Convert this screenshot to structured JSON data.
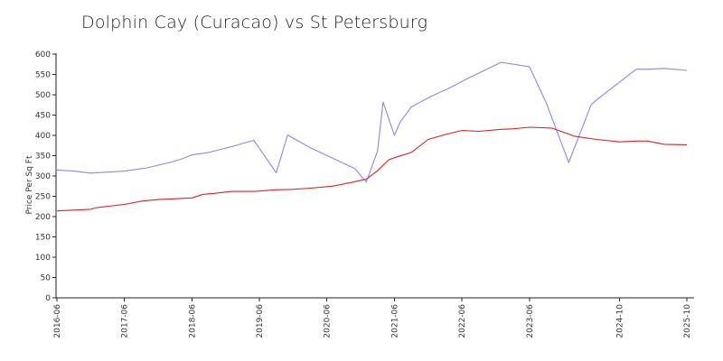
{
  "chart_data": {
    "type": "line",
    "title": "Dolphin Cay (Curacao) vs St Petersburg",
    "xlabel": "",
    "ylabel": "Price Per Sq Ft",
    "ylim": [
      0,
      600
    ],
    "yticks": [
      0,
      50,
      100,
      150,
      200,
      250,
      300,
      350,
      400,
      450,
      500,
      550,
      600
    ],
    "xticks": [
      "2016-06",
      "2017-06",
      "2018-06",
      "2019-06",
      "2020-06",
      "2021-06",
      "2022-06",
      "2023-06",
      "2024-10",
      "2025-10"
    ],
    "grid": false,
    "legend": "none",
    "series": [
      {
        "color": "#8888ee",
        "x": [
          "2016-06",
          "2016-09",
          "2016-12",
          "2017-01",
          "2017-06",
          "2017-10",
          "2018-02",
          "2018-04",
          "2018-06",
          "2018-09",
          "2019-01",
          "2019-05",
          "2019-09",
          "2019-11",
          "2020-03",
          "2020-07",
          "2020-11",
          "2021-01",
          "2021-03",
          "2021-04",
          "2021-06",
          "2021-07",
          "2021-09",
          "2021-11",
          "2022-01",
          "2022-04",
          "2022-07",
          "2022-10",
          "2023-01",
          "2023-06",
          "2023-09",
          "2024-01",
          "2024-05",
          "2024-06",
          "2025-01",
          "2025-03",
          "2025-06",
          "2025-10"
        ],
        "y": [
          315,
          312,
          307,
          308,
          312,
          320,
          333,
          341,
          352,
          358,
          372,
          388,
          308,
          401,
          370,
          344,
          318,
          285,
          361,
          482,
          400,
          432,
          470,
          485,
          499,
          518,
          540,
          560,
          580,
          569,
          480,
          333,
          476,
          488,
          563,
          563,
          565,
          560
        ]
      },
      {
        "color": "#dd2222",
        "x": [
          "2016-06",
          "2016-09",
          "2016-12",
          "2017-01",
          "2017-06",
          "2017-09",
          "2017-12",
          "2018-02",
          "2018-06",
          "2018-08",
          "2018-10",
          "2019-01",
          "2019-05",
          "2019-09",
          "2019-12",
          "2020-03",
          "2020-07",
          "2020-10",
          "2021-01",
          "2021-03",
          "2021-05",
          "2021-06",
          "2021-09",
          "2021-12",
          "2022-03",
          "2022-06",
          "2022-09",
          "2023-01",
          "2023-03",
          "2023-06",
          "2023-10",
          "2024-02",
          "2024-06",
          "2024-10",
          "2025-01",
          "2025-03",
          "2025-06",
          "2025-10"
        ],
        "y": [
          214,
          216,
          218,
          222,
          230,
          238,
          242,
          243,
          246,
          255,
          257,
          262,
          262,
          266,
          267,
          270,
          275,
          283,
          292,
          313,
          340,
          345,
          358,
          390,
          402,
          412,
          410,
          415,
          416,
          420,
          418,
          398,
          390,
          384,
          386,
          386,
          378,
          377
        ]
      }
    ]
  }
}
